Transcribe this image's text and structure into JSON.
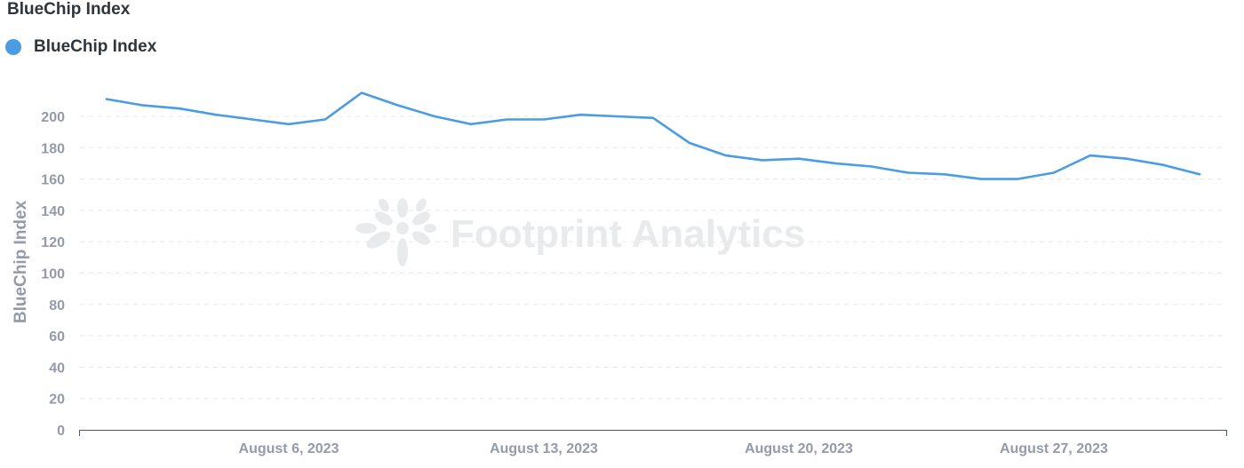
{
  "card": {
    "title": "BlueChip Index"
  },
  "watermark": {
    "text": "Footprint Analytics"
  },
  "chart_data": {
    "type": "line",
    "title": "BlueChip Index",
    "xlabel": "",
    "ylabel": "BlueChip Index",
    "ylim": [
      0,
      200
    ],
    "y_ticks": [
      0,
      20,
      40,
      60,
      80,
      100,
      120,
      140,
      160,
      180,
      200
    ],
    "x_tick_labels": [
      {
        "date": "2023-08-06",
        "label": "August 6, 2023"
      },
      {
        "date": "2023-08-13",
        "label": "August 13, 2023"
      },
      {
        "date": "2023-08-20",
        "label": "August 20, 2023"
      },
      {
        "date": "2023-08-27",
        "label": "August 27, 2023"
      }
    ],
    "grid": true,
    "legend_position": "top-left",
    "series": [
      {
        "name": "BlueChip Index",
        "color": "#4a9de2",
        "x": [
          "2023-08-01",
          "2023-08-02",
          "2023-08-03",
          "2023-08-04",
          "2023-08-05",
          "2023-08-06",
          "2023-08-07",
          "2023-08-08",
          "2023-08-09",
          "2023-08-10",
          "2023-08-11",
          "2023-08-12",
          "2023-08-13",
          "2023-08-14",
          "2023-08-15",
          "2023-08-16",
          "2023-08-17",
          "2023-08-18",
          "2023-08-19",
          "2023-08-20",
          "2023-08-21",
          "2023-08-22",
          "2023-08-23",
          "2023-08-24",
          "2023-08-25",
          "2023-08-26",
          "2023-08-27",
          "2023-08-28",
          "2023-08-29",
          "2023-08-30",
          "2023-08-31"
        ],
        "values": [
          211,
          207,
          205,
          201,
          198,
          195,
          198,
          215,
          207,
          200,
          195,
          198,
          198,
          201,
          200,
          199,
          183,
          175,
          172,
          173,
          170,
          168,
          164,
          163,
          160,
          160,
          164,
          175,
          173,
          169,
          163
        ]
      }
    ]
  }
}
